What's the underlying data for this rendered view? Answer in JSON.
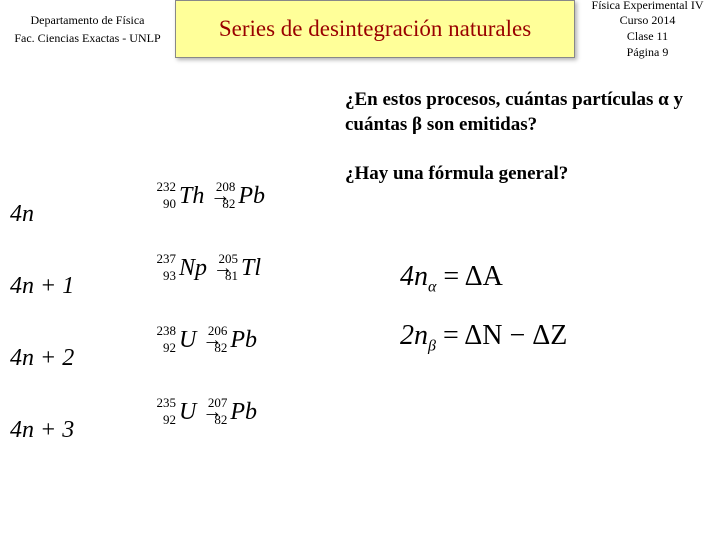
{
  "header": {
    "left_line1": "Departamento de Física",
    "left_line2": "Fac. Ciencias Exactas - UNLP",
    "title": "Series de desintegración naturales",
    "right_line1": "Física Experimental IV",
    "right_line2": "Curso 2014",
    "right_line3": "Clase 11",
    "right_line4": "Página 9"
  },
  "question1_a": "¿En estos procesos, cuántas  partículas ",
  "question1_b": " y cuántas ",
  "question1_c": "  son emitidas?",
  "alpha": "α",
  "beta": "β",
  "question2": "¿Hay una fórmula general?",
  "series": {
    "s1": "4n",
    "s2": "4n + 1",
    "s3": "4n + 2",
    "s4": "4n + 3"
  },
  "decays": {
    "r1": {
      "A1": "232",
      "Z1": "90",
      "S1": "Th",
      "A2": "208",
      "Z2": "82",
      "S2": "Pb"
    },
    "r2": {
      "A1": "237",
      "Z1": "93",
      "S1": "Np",
      "A2": "205",
      "Z2": "81",
      "S2": "Tl"
    },
    "r3": {
      "A1": "238",
      "Z1": "92",
      "S1": "U",
      "A2": "206",
      "Z2": "82",
      "S2": "Pb"
    },
    "r4": {
      "A1": "235",
      "Z1": "92",
      "S1": "U",
      "A2": "207",
      "Z2": "82",
      "S2": "Pb"
    }
  },
  "formula1_a": "4n",
  "formula1_sub": "α",
  "formula1_b": " = ΔA",
  "formula2_a": "2n",
  "formula2_sub": "β",
  "formula2_b": " = ΔN − ΔZ"
}
